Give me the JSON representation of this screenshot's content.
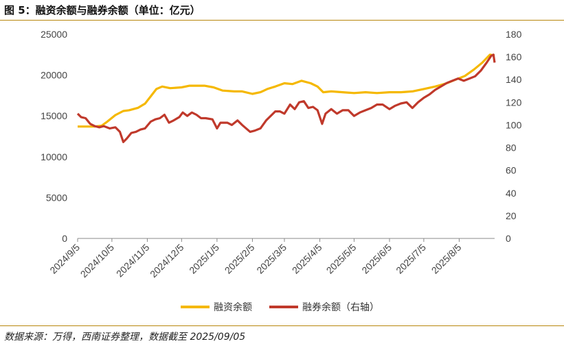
{
  "header": {
    "title": "图 5：融资余额与融券余额（单位：亿元）"
  },
  "footer": {
    "source": "数据来源：万得，西南证券整理，数据截至 2025/09/05"
  },
  "colors": {
    "margin_financing": "#f5b800",
    "securities_lending": "#c0392b"
  },
  "chart_data": {
    "type": "line",
    "title": "融资余额与融券余额",
    "xlabel": "",
    "ylabel": "",
    "x_ticks": [
      "2024/9/5",
      "2024/10/5",
      "2024/11/5",
      "2024/12/5",
      "2025/1/5",
      "2025/2/5",
      "2025/3/5",
      "2025/4/5",
      "2025/5/5",
      "2025/6/5",
      "2025/7/5",
      "2025/8/5"
    ],
    "x_range": [
      "2024/9/5",
      "2025/9/5"
    ],
    "y_left": {
      "ylim": [
        0,
        25000
      ],
      "ticks": [
        0,
        5000,
        10000,
        15000,
        20000,
        25000
      ]
    },
    "y_right": {
      "ylim": [
        0,
        180
      ],
      "ticks": [
        0,
        20,
        40,
        60,
        80,
        100,
        120,
        140,
        160,
        180
      ]
    },
    "legend": {
      "placement": "bottom-center"
    },
    "grid": false,
    "series": [
      {
        "name": "融资余额",
        "axis": "left",
        "points": [
          [
            "2024/9/5",
            13700
          ],
          [
            "2024/9/20",
            13700
          ],
          [
            "2024/9/26",
            13800
          ],
          [
            "2024/9/30",
            14200
          ],
          [
            "2024/10/8",
            15100
          ],
          [
            "2024/10/15",
            15600
          ],
          [
            "2024/10/20",
            15700
          ],
          [
            "2024/10/28",
            16000
          ],
          [
            "2024/11/3",
            16500
          ],
          [
            "2024/11/8",
            17400
          ],
          [
            "2024/11/13",
            18300
          ],
          [
            "2024/11/18",
            18600
          ],
          [
            "2024/11/25",
            18400
          ],
          [
            "2024/12/5",
            18500
          ],
          [
            "2024/12/12",
            18700
          ],
          [
            "2024/12/25",
            18700
          ],
          [
            "2025/1/2",
            18500
          ],
          [
            "2025/1/10",
            18100
          ],
          [
            "2025/1/20",
            18000
          ],
          [
            "2025/1/27",
            18000
          ],
          [
            "2025/2/5",
            17700
          ],
          [
            "2025/2/12",
            17900
          ],
          [
            "2025/2/18",
            18300
          ],
          [
            "2025/2/25",
            18600
          ],
          [
            "2025/3/5",
            19000
          ],
          [
            "2025/3/12",
            18900
          ],
          [
            "2025/3/20",
            19300
          ],
          [
            "2025/3/28",
            19000
          ],
          [
            "2025/4/3",
            18600
          ],
          [
            "2025/4/8",
            17900
          ],
          [
            "2025/4/15",
            18000
          ],
          [
            "2025/4/25",
            17900
          ],
          [
            "2025/5/5",
            17800
          ],
          [
            "2025/5/15",
            17900
          ],
          [
            "2025/5/25",
            17800
          ],
          [
            "2025/6/5",
            17900
          ],
          [
            "2025/6/15",
            17900
          ],
          [
            "2025/6/25",
            18000
          ],
          [
            "2025/7/5",
            18300
          ],
          [
            "2025/7/15",
            18600
          ],
          [
            "2025/7/25",
            19000
          ],
          [
            "2025/8/1",
            19400
          ],
          [
            "2025/8/10",
            19900
          ],
          [
            "2025/8/18",
            20700
          ],
          [
            "2025/8/25",
            21500
          ],
          [
            "2025/9/1",
            22500
          ],
          [
            "2025/9/5",
            22400
          ]
        ]
      },
      {
        "name": "融券余额（右轴）",
        "axis": "right",
        "points": [
          [
            "2024/9/5",
            110
          ],
          [
            "2024/9/8",
            107
          ],
          [
            "2024/9/12",
            106
          ],
          [
            "2024/9/16",
            101
          ],
          [
            "2024/9/20",
            99
          ],
          [
            "2024/9/24",
            98
          ],
          [
            "2024/9/28",
            99
          ],
          [
            "2024/10/3",
            97
          ],
          [
            "2024/10/8",
            98
          ],
          [
            "2024/10/12",
            94
          ],
          [
            "2024/10/15",
            85
          ],
          [
            "2024/10/18",
            88
          ],
          [
            "2024/10/22",
            93
          ],
          [
            "2024/10/26",
            94
          ],
          [
            "2024/10/30",
            96
          ],
          [
            "2024/11/3",
            97
          ],
          [
            "2024/11/8",
            103
          ],
          [
            "2024/11/12",
            105
          ],
          [
            "2024/11/16",
            106
          ],
          [
            "2024/11/20",
            109
          ],
          [
            "2024/11/24",
            102
          ],
          [
            "2024/11/28",
            104
          ],
          [
            "2024/12/3",
            107
          ],
          [
            "2024/12/6",
            111
          ],
          [
            "2024/12/10",
            108
          ],
          [
            "2024/12/14",
            111
          ],
          [
            "2024/12/18",
            109
          ],
          [
            "2024/12/22",
            106
          ],
          [
            "2024/12/26",
            106
          ],
          [
            "2025/1/1",
            105
          ],
          [
            "2025/1/5",
            97
          ],
          [
            "2025/1/8",
            102
          ],
          [
            "2025/1/14",
            102
          ],
          [
            "2025/1/18",
            100
          ],
          [
            "2025/1/23",
            104
          ],
          [
            "2025/1/27",
            100
          ],
          [
            "2025/2/3",
            94
          ],
          [
            "2025/2/7",
            95
          ],
          [
            "2025/2/12",
            97
          ],
          [
            "2025/2/17",
            104
          ],
          [
            "2025/2/21",
            108
          ],
          [
            "2025/2/25",
            112
          ],
          [
            "2025/3/1",
            112
          ],
          [
            "2025/3/5",
            110
          ],
          [
            "2025/3/10",
            118
          ],
          [
            "2025/3/14",
            114
          ],
          [
            "2025/3/18",
            120
          ],
          [
            "2025/3/22",
            121
          ],
          [
            "2025/3/26",
            115
          ],
          [
            "2025/3/30",
            116
          ],
          [
            "2025/4/3",
            113
          ],
          [
            "2025/4/7",
            101
          ],
          [
            "2025/4/10",
            110
          ],
          [
            "2025/4/15",
            114
          ],
          [
            "2025/4/20",
            110
          ],
          [
            "2025/4/25",
            113
          ],
          [
            "2025/4/30",
            113
          ],
          [
            "2025/5/5",
            108
          ],
          [
            "2025/5/10",
            111
          ],
          [
            "2025/5/15",
            113
          ],
          [
            "2025/5/20",
            115
          ],
          [
            "2025/5/25",
            118
          ],
          [
            "2025/5/30",
            118
          ],
          [
            "2025/6/5",
            114
          ],
          [
            "2025/6/10",
            117
          ],
          [
            "2025/6/15",
            119
          ],
          [
            "2025/6/20",
            120
          ],
          [
            "2025/6/25",
            115
          ],
          [
            "2025/6/30",
            120
          ],
          [
            "2025/7/5",
            124
          ],
          [
            "2025/7/10",
            127
          ],
          [
            "2025/7/15",
            131
          ],
          [
            "2025/7/20",
            134
          ],
          [
            "2025/7/25",
            137
          ],
          [
            "2025/7/30",
            139
          ],
          [
            "2025/8/4",
            141
          ],
          [
            "2025/8/9",
            139
          ],
          [
            "2025/8/14",
            141
          ],
          [
            "2025/8/19",
            143
          ],
          [
            "2025/8/24",
            148
          ],
          [
            "2025/8/29",
            155
          ],
          [
            "2025/9/2",
            161
          ],
          [
            "2025/9/4",
            162
          ],
          [
            "2025/9/5",
            155
          ]
        ]
      }
    ]
  }
}
